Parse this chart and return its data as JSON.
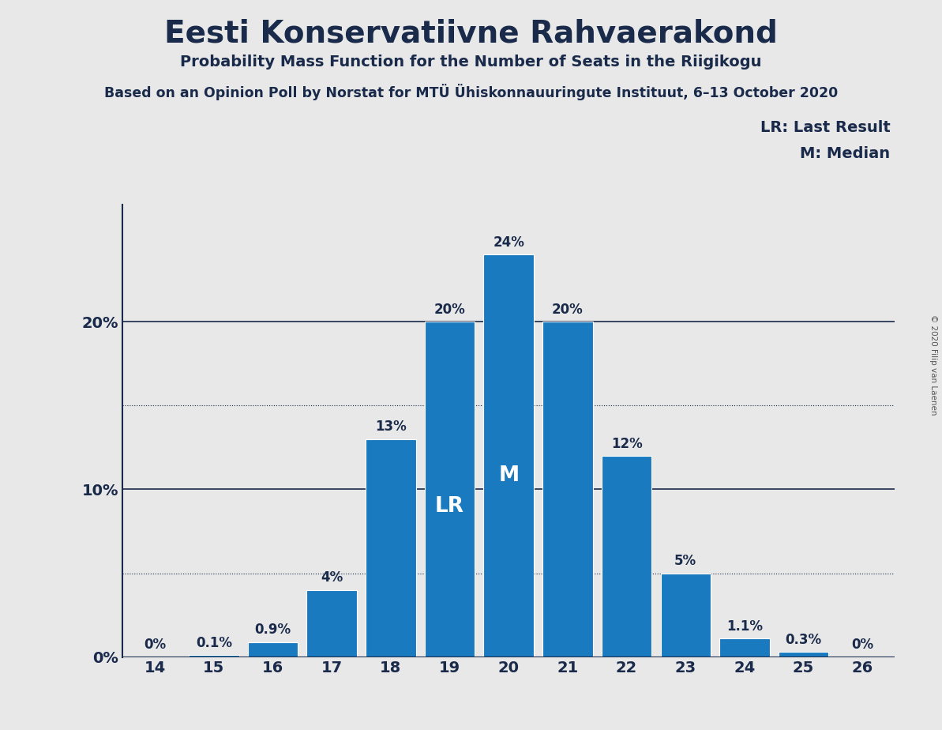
{
  "title": "Eesti Konservatiivne Rahvaerakond",
  "subtitle": "Probability Mass Function for the Number of Seats in the Riigikogu",
  "source_line": "Based on an Opinion Poll by Norstat for MTÜ Ühiskonnauuringute Instituut, 6–13 October 2020",
  "copyright": "© 2020 Filip van Laenen",
  "categories": [
    14,
    15,
    16,
    17,
    18,
    19,
    20,
    21,
    22,
    23,
    24,
    25,
    26
  ],
  "values": [
    0.0,
    0.1,
    0.9,
    4.0,
    13.0,
    20.0,
    24.0,
    20.0,
    12.0,
    5.0,
    1.1,
    0.3,
    0.0
  ],
  "labels": [
    "0%",
    "0.1%",
    "0.9%",
    "4%",
    "13%",
    "20%",
    "24%",
    "20%",
    "12%",
    "5%",
    "1.1%",
    "0.3%",
    "0%"
  ],
  "bar_color": "#1a7abf",
  "background_color": "#e8e8e8",
  "plot_bg_color": "#e8e8e8",
  "text_color": "#1a2a4a",
  "lr_seat": 19,
  "median_seat": 20,
  "legend_lr": "LR: Last Result",
  "legend_m": "M: Median",
  "ylim": [
    0,
    27
  ],
  "yticks": [
    0,
    10,
    20
  ],
  "dotted_lines": [
    5,
    15
  ],
  "solid_lines": [
    10,
    20
  ]
}
